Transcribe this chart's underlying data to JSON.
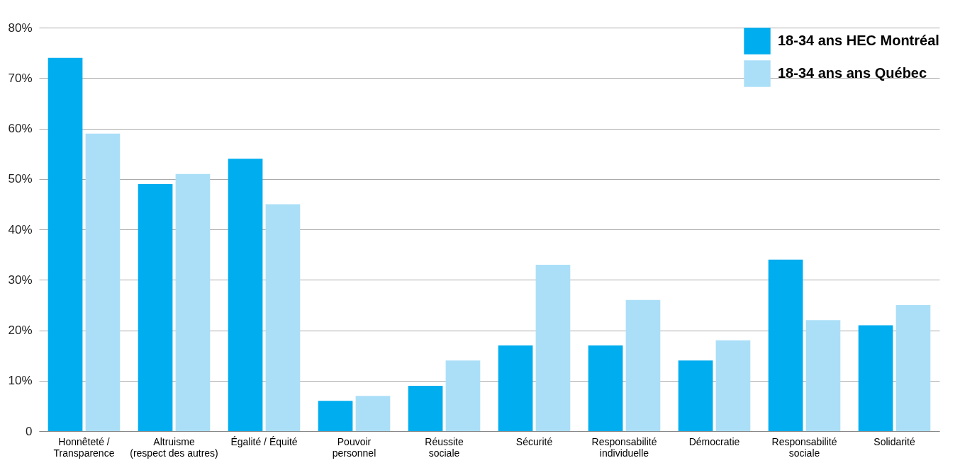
{
  "chart_data": {
    "type": "bar",
    "categories": [
      "Honnêteté /\nTransparence",
      "Altruisme\n(respect des autres)",
      "Égalité / Équité",
      "Pouvoir\npersonnel",
      "Réussite\nsociale",
      "Sécurité",
      "Responsabilité\nindividuelle",
      "Démocratie",
      "Responsabilité\nsociale",
      "Solidarité"
    ],
    "series": [
      {
        "name": "18-34 ans HEC Montréal",
        "color": "#00adef",
        "values": [
          74,
          49,
          54,
          6,
          9,
          17,
          17,
          14,
          34,
          21
        ]
      },
      {
        "name": "18-34 ans ans Québec",
        "color": "#abdff8",
        "values": [
          59,
          51,
          45,
          7,
          14,
          33,
          26,
          18,
          22,
          25
        ]
      }
    ],
    "ylim": [
      0,
      80
    ],
    "yticks": [
      {
        "value": 0,
        "label": "0"
      },
      {
        "value": 10,
        "label": "10%"
      },
      {
        "value": 20,
        "label": "20%"
      },
      {
        "value": 30,
        "label": "30%"
      },
      {
        "value": 40,
        "label": "40%"
      },
      {
        "value": 50,
        "label": "50%"
      },
      {
        "value": 60,
        "label": "60%"
      },
      {
        "value": 70,
        "label": "70%"
      },
      {
        "value": 80,
        "label": "80%"
      }
    ],
    "grid": "y",
    "legend": "top right"
  }
}
